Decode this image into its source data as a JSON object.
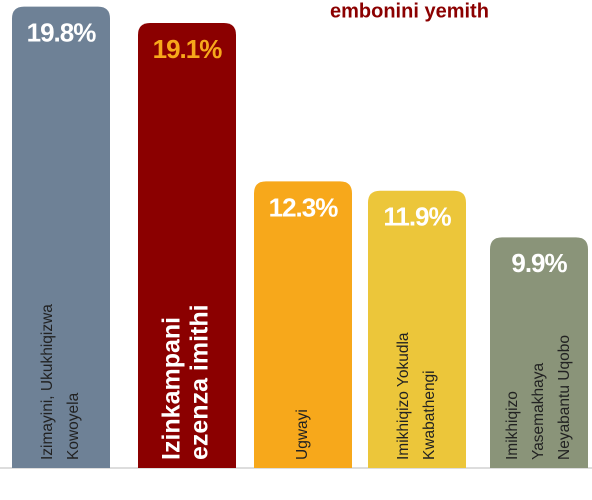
{
  "chart_data": {
    "type": "bar",
    "title": "embonini yemith",
    "categories": [
      [
        "Izimayini, Ukukhiqizwa",
        "Kowoyela"
      ],
      [
        "Izinkampani",
        "ezenza imithi"
      ],
      [
        "Ugwayi"
      ],
      [
        "Imikhiqizo Yokudla",
        "Kwabathengi"
      ],
      [
        "Imikhiqizo",
        "Yasemakhaya",
        "Neyabantu Uqobo"
      ]
    ],
    "values": [
      19.8,
      19.1,
      12.3,
      11.9,
      9.9
    ],
    "value_labels": [
      "19.8%",
      "19.1%",
      "12.3%",
      "11.9%",
      "9.9%"
    ],
    "colors": [
      "#6e8196",
      "#8b0000",
      "#f7a81b",
      "#ecc63a",
      "#8a9479"
    ],
    "label_colors": [
      "#ffffff",
      "#f7a81b",
      "#ffffff",
      "#ffffff",
      "#ffffff"
    ]
  }
}
